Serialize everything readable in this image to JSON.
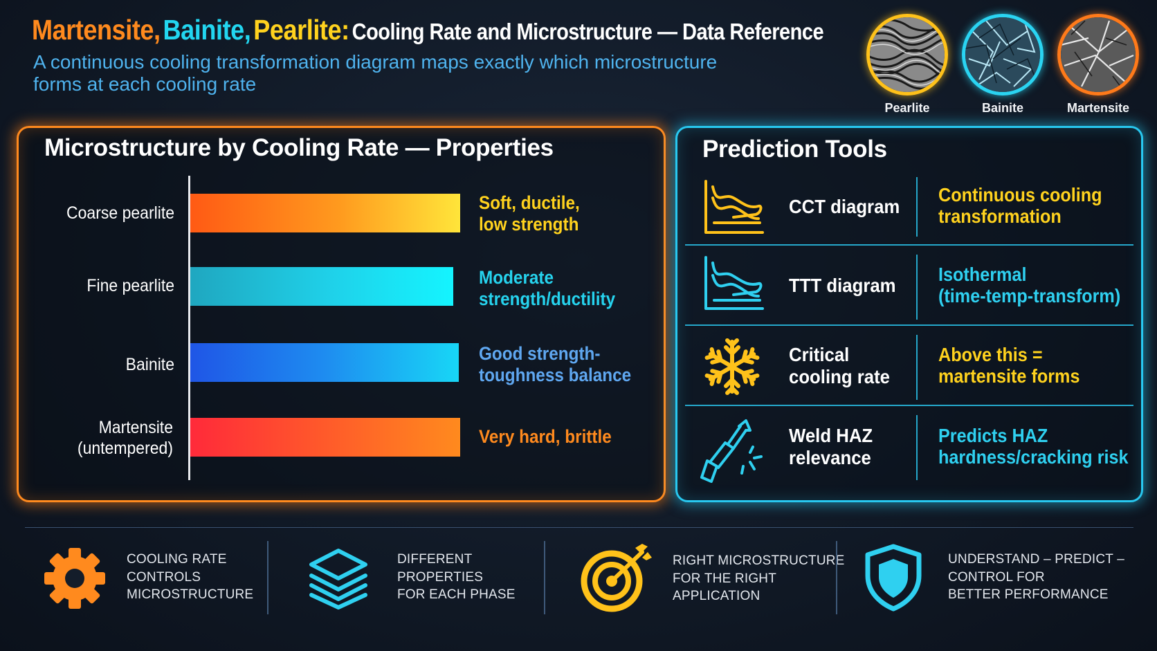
{
  "header": {
    "title_part1": "Martensite,",
    "title_part2": "Bainite,",
    "title_part3": "Pearlite:",
    "title_rest": "Cooling Rate and Microstructure — Data Reference",
    "subtitle_line1": "A continuous cooling transformation diagram maps exactly which microstructure",
    "subtitle_line2": "forms at each cooling rate",
    "thumbnails": [
      {
        "label": "Pearlite",
        "ring_color": "#ffc21a"
      },
      {
        "label": "Bainite",
        "ring_color": "#2ad4f2"
      },
      {
        "label": "Martensite",
        "ring_color": "#ff7a1a"
      }
    ]
  },
  "left_panel": {
    "title": "Microstructure by Cooling Rate — Properties",
    "rows": [
      {
        "label": "Coarse pearlite",
        "property_line1": "Soft, ductile,",
        "property_line2": "low strength",
        "property_color": "#ffd21e"
      },
      {
        "label": "Fine pearlite",
        "property_line1": "Moderate",
        "property_line2": "strength/ductility",
        "property_color": "#26d3ee"
      },
      {
        "label": "Bainite",
        "property_line1": "Good strength-",
        "property_line2": "toughness balance",
        "property_color": "#5fa7f0"
      },
      {
        "label_line1": "Martensite",
        "label_line2": "(untempered)",
        "property_line1": "Very hard, brittle",
        "property_color": "#ff8a1e"
      }
    ]
  },
  "right_panel": {
    "title": "Prediction Tools",
    "tools": [
      {
        "icon": "cct-diagram-icon",
        "name_line1": "CCT diagram",
        "desc_line1": "Continuous cooling",
        "desc_line2": "transformation",
        "desc_color": "#ffd21e"
      },
      {
        "icon": "ttt-diagram-icon",
        "name_line1": "TTT diagram",
        "desc_line1": "Isothermal",
        "desc_line2": "(time-temp-transform)",
        "desc_color": "#2fd0f0"
      },
      {
        "icon": "snowflake-icon",
        "name_line1": "Critical",
        "name_line2": "cooling rate",
        "desc_line1": "Above this =",
        "desc_line2": "martensite forms",
        "desc_color": "#ffd21e"
      },
      {
        "icon": "welding-torch-icon",
        "name_line1": "Weld HAZ",
        "name_line2": "relevance",
        "desc_line1": "Predicts HAZ",
        "desc_line2": "hardness/cracking risk",
        "desc_color": "#2fd0f0"
      }
    ]
  },
  "footer": {
    "items": [
      {
        "icon": "gear-icon",
        "line1": "COOLING RATE",
        "line2": "CONTROLS",
        "line3": "MICROSTRUCTURE"
      },
      {
        "icon": "layers-icon",
        "line1": "DIFFERENT",
        "line2": "PROPERTIES",
        "line3": "FOR EACH PHASE"
      },
      {
        "icon": "target-icon",
        "line1": "RIGHT MICROSTRUCTURE",
        "line2": "FOR THE RIGHT",
        "line3": "APPLICATION"
      },
      {
        "icon": "shield-icon",
        "line1": "UNDERSTAND – PREDICT –",
        "line2": "CONTROL FOR",
        "line3": "BETTER PERFORMANCE"
      }
    ]
  }
}
